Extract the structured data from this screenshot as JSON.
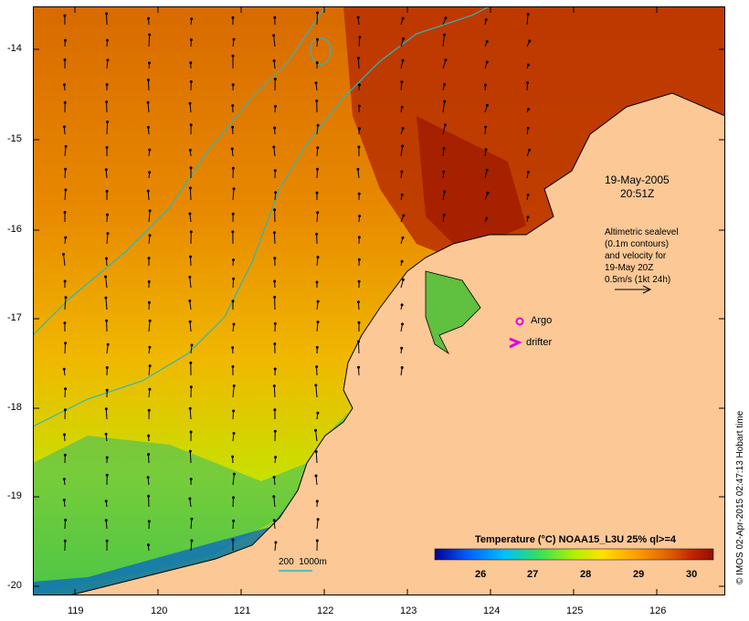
{
  "map": {
    "axes": {
      "lon_ticks": [
        "119",
        "120",
        "121",
        "122",
        "123",
        "124",
        "125",
        "126"
      ],
      "lat_ticks": [
        "-14",
        "-15",
        "-16",
        "-17",
        "-18",
        "-19",
        "-20"
      ]
    },
    "date_label": "19-May-2005",
    "time_label": "20:51Z",
    "altimetry_text": [
      "Altimetric sealevel",
      "(0.1m contours)",
      "and velocity for",
      "19-May 20Z",
      "0.5m/s (1kt 24h)"
    ],
    "legend": {
      "argo_label": "Argo",
      "drifter_label": "drifter",
      "argo_color": "#e000e0",
      "drifter_color": "#e000e0"
    },
    "contour_scale_label": "200  1000m",
    "contour_color": "#2ab8b8",
    "land_color": "#fbc896",
    "colorbar": {
      "title": "Temperature (°C) NOAA15_L3U 25% ql>=4",
      "ticks": [
        "26",
        "27",
        "28",
        "29",
        "30"
      ],
      "colors": [
        "#00009a",
        "#0060ff",
        "#00c0ff",
        "#30e060",
        "#b0f000",
        "#ffe000",
        "#ffa000",
        "#e06000",
        "#c02000",
        "#901000"
      ]
    },
    "credit": "© IMOS 02-Apr-2015 02:47:13 Hobart time"
  }
}
